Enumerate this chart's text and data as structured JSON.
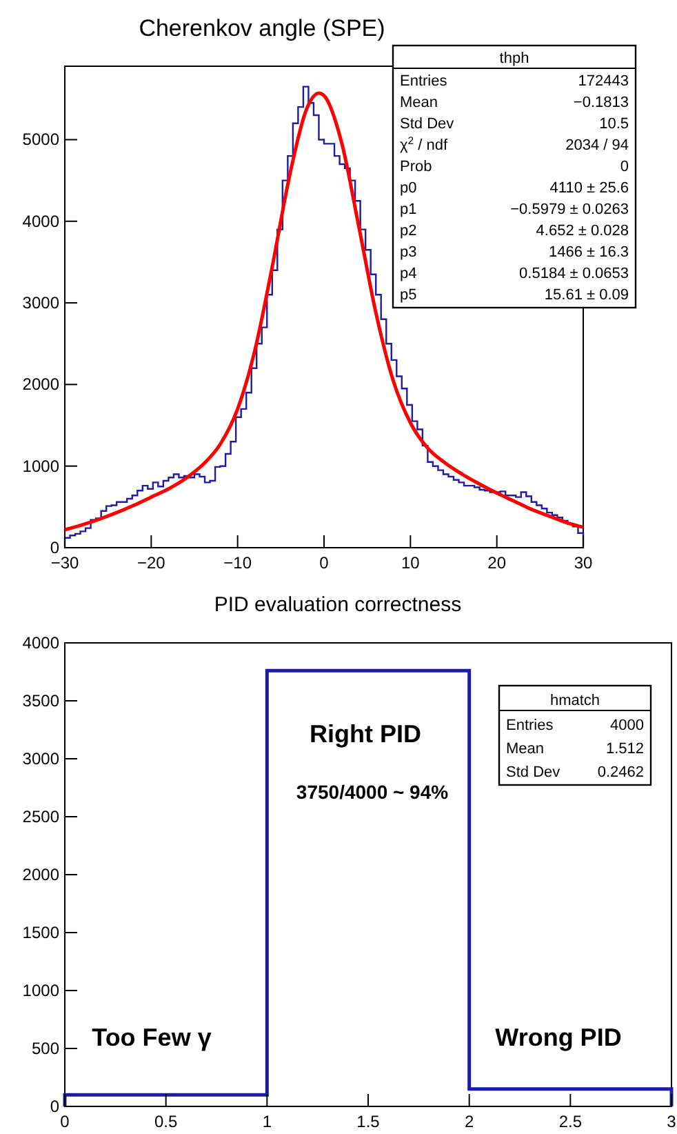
{
  "chart_data": [
    {
      "type": "histogram",
      "title": "Cherenkov angle (SPE)",
      "xlim": [
        -30,
        30
      ],
      "ylim": [
        0,
        5900
      ],
      "xticks": [
        -30,
        -20,
        -10,
        0,
        10,
        20,
        30
      ],
      "yticks": [
        0,
        1000,
        2000,
        3000,
        4000,
        5000
      ],
      "bins": [
        -30,
        -29.4,
        -28.8,
        -28.2,
        -27.6,
        -27,
        -26.4,
        -25.8,
        -25.2,
        -24.6,
        -24,
        -23.4,
        -22.8,
        -22.2,
        -21.6,
        -21,
        -20.4,
        -19.8,
        -19.2,
        -18.6,
        -18,
        -17.4,
        -16.8,
        -16.2,
        -15.6,
        -15,
        -14.4,
        -13.8,
        -13.2,
        -12.6,
        -12,
        -11.4,
        -10.8,
        -10.2,
        -9.6,
        -9,
        -8.4,
        -7.8,
        -7.2,
        -6.6,
        -6,
        -5.4,
        -4.8,
        -4.2,
        -3.6,
        -3,
        -2.4,
        -1.8,
        -1.2,
        -0.6,
        0,
        0.6,
        1.2,
        1.8,
        2.4,
        3,
        3.6,
        4.2,
        4.8,
        5.4,
        6,
        6.6,
        7.2,
        7.8,
        8.4,
        9,
        9.6,
        10.2,
        10.8,
        11.4,
        12,
        12.6,
        13.2,
        13.8,
        14.4,
        15,
        15.6,
        16.2,
        16.8,
        17.4,
        18,
        18.6,
        19.2,
        19.8,
        20.4,
        21,
        21.6,
        22.2,
        22.8,
        23.4,
        24,
        24.6,
        25.2,
        25.8,
        26.4,
        27,
        27.6,
        28.2,
        28.8,
        29.4,
        30
      ],
      "series": [
        {
          "color": "#1c1ca8",
          "values": [
            120,
            150,
            170,
            200,
            240,
            340,
            360,
            450,
            510,
            520,
            560,
            560,
            600,
            640,
            700,
            760,
            720,
            800,
            750,
            820,
            860,
            900,
            860,
            880,
            860,
            900,
            870,
            800,
            820,
            990,
            1000,
            1150,
            1300,
            1600,
            1700,
            1900,
            2200,
            2500,
            2700,
            3100,
            3400,
            3900,
            4500,
            4800,
            5200,
            5400,
            5650,
            5450,
            5300,
            5000,
            4950,
            4950,
            4800,
            4700,
            4650,
            4500,
            4250,
            3900,
            3650,
            3350,
            3100,
            2800,
            2500,
            2300,
            2100,
            1950,
            1750,
            1550,
            1450,
            1250,
            1050,
            1000,
            950,
            900,
            870,
            830,
            800,
            760,
            760,
            740,
            710,
            700,
            680,
            680,
            690,
            640,
            640,
            620,
            680,
            630,
            560,
            520,
            480,
            430,
            400,
            370,
            330,
            290,
            260,
            180
          ]
        },
        {
          "type": "line",
          "color": "#ff0000",
          "x": [
            -30,
            -28,
            -26,
            -24,
            -22,
            -20,
            -18,
            -16,
            -14,
            -12,
            -10,
            -8,
            -6,
            -4,
            -2,
            -0.6,
            0,
            2,
            4,
            6,
            8,
            10,
            12,
            14,
            16,
            18,
            20,
            22,
            24,
            26,
            28,
            30
          ],
          "values": [
            220,
            280,
            350,
            430,
            520,
            620,
            720,
            850,
            1020,
            1270,
            1700,
            2420,
            3440,
            4550,
            5380,
            5570,
            5540,
            4980,
            3950,
            2880,
            2050,
            1530,
            1220,
            1040,
            900,
            780,
            670,
            570,
            470,
            390,
            310,
            250
          ]
        }
      ],
      "annotations": [
        "thph",
        "Entries",
        "172443",
        "Mean",
        "−0.1813",
        "Std Dev",
        "10.5",
        "χ$^{2}$ / ndf",
        "2034 / 94",
        "Prob",
        "0",
        "p0",
        "4110 ± 25.6",
        "p1",
        "−0.5979 ± 0.0263",
        "p2",
        "4.652 ± 0.028",
        "p3",
        "1466 ± 16.3",
        "p4",
        "0.5184 ± 0.0653",
        "p5",
        "15.61 ± 0.09"
      ]
    },
    {
      "type": "histogram",
      "title": "PID evaluation correctness",
      "xlim": [
        0,
        3
      ],
      "ylim": [
        0,
        4000
      ],
      "xticks": [
        0,
        0.5,
        1,
        1.5,
        2,
        2.5,
        3
      ],
      "yticks": [
        0,
        500,
        1000,
        1500,
        2000,
        2500,
        3000,
        3500,
        4000
      ],
      "bins": [
        0,
        1,
        2,
        3
      ],
      "series": [
        {
          "color": "#1c1ca8",
          "values": [
            100,
            3760,
            150
          ]
        }
      ],
      "annotations": [
        "hmatch",
        "Entries",
        "4000",
        "Mean",
        "1.512",
        "Std Dev",
        "0.2462",
        "Right PID",
        "3750/4000 ~ 94%",
        "Too Few γ",
        "Wrong PID"
      ]
    }
  ]
}
